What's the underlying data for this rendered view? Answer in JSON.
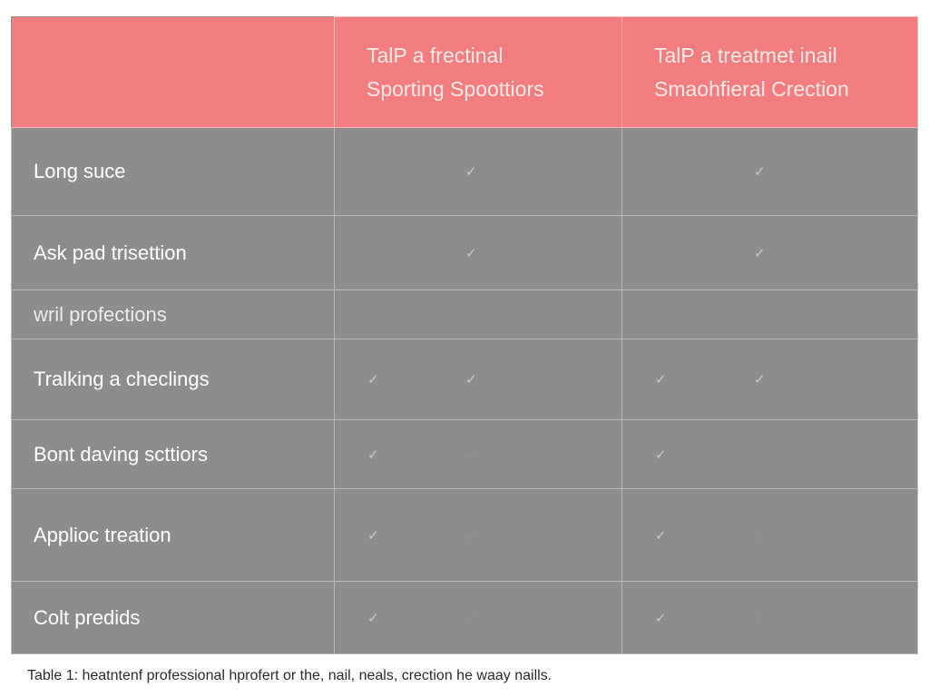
{
  "table": {
    "headers": [
      "",
      "TalP a frectinal Sporting Spoottiors",
      "TalP a treatmet inail Smaohfieral Crection"
    ],
    "header_lines": [
      [],
      [
        "TalP a frectinal",
        "Sporting Spoottiors"
      ],
      [
        "TalP a treatmet inail",
        "Smaohfieral Crection"
      ]
    ],
    "rows": [
      {
        "label": "Long suce",
        "col1": "single",
        "col2": "single"
      },
      {
        "label": "Ask pad trisettion",
        "col1": "single",
        "col2": "single"
      },
      {
        "label": "wril profections",
        "col1": "none",
        "col2": "none"
      },
      {
        "label": "Tralking a checlings",
        "col1": "double",
        "col2": "double"
      },
      {
        "label": "Bont daving scttiors",
        "col1": "left-faint",
        "col2": "left-faint"
      },
      {
        "label": "Applioc treation",
        "col1": "left-faint",
        "col2": "left-faint"
      },
      {
        "label": "Colt predids",
        "col1": "left-faint",
        "col2": "left-faint"
      }
    ],
    "check_symbol": "✓"
  },
  "caption": "Table 1: heatntenf professional hprofert or the, nail, neals, crection he waay naills.",
  "colors": {
    "header_bg": "#f27d7e",
    "body_bg": "#8d8d8d",
    "grid": "#b7b7b7"
  }
}
